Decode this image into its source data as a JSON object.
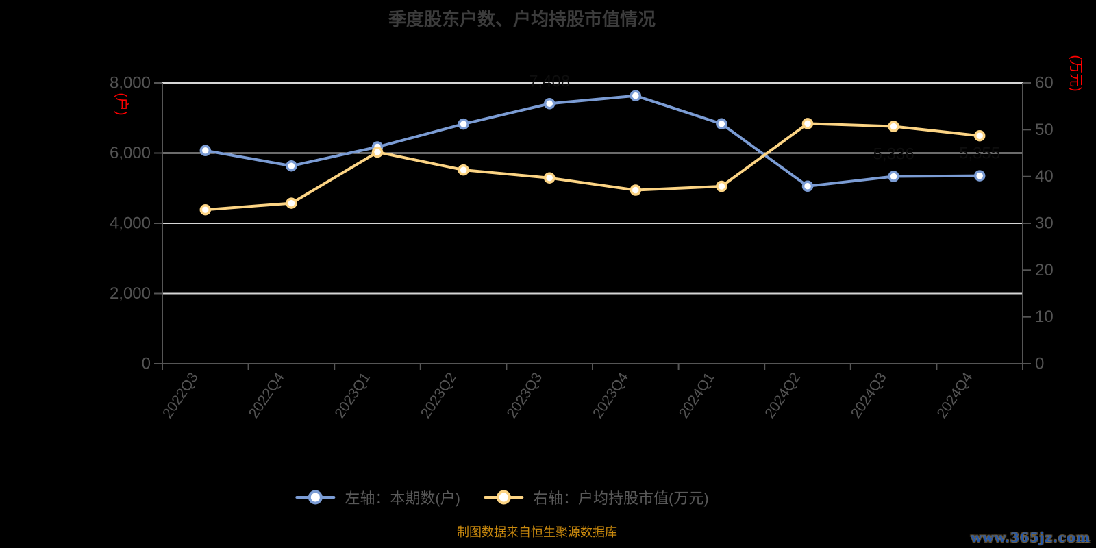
{
  "title": "季度股东户数、户均持股市值情况",
  "chart_data": {
    "type": "line",
    "categories": [
      "2022Q3",
      "2022Q4",
      "2023Q1",
      "2023Q2",
      "2023Q3",
      "2023Q4",
      "2024Q1",
      "2024Q2",
      "2024Q3",
      "2024Q4"
    ],
    "series": [
      {
        "name": "左轴：本期数(户)",
        "axis": "left",
        "color": "#7b9cd4",
        "marker_fill": "#ffffff",
        "values": [
          6073,
          5635,
          6176,
          6828,
          7408,
          7636,
          6834,
          5057,
          5336,
          5355
        ]
      },
      {
        "name": "右轴：户均持股市值(万元)",
        "axis": "right",
        "color": "#fcd484",
        "marker_fill": "#ffffff",
        "values": [
          32.9,
          34.3,
          45.2,
          41.4,
          39.7,
          37.1,
          37.9,
          51.3,
          50.7,
          48.7
        ]
      }
    ],
    "left_axis": {
      "unit_label": "(户)",
      "min": 0,
      "max": 8000,
      "step": 2000,
      "tick_labels": [
        "0",
        "2,000",
        "4,000",
        "6,000",
        "8,000"
      ]
    },
    "right_axis": {
      "unit_label": "(万元)",
      "min": 0,
      "max": 60,
      "step": 10,
      "tick_labels": [
        "0",
        "10",
        "20",
        "30",
        "40",
        "50",
        "60"
      ]
    },
    "grid": true,
    "legend_position": "bottom",
    "hidden_point_labels": [
      {
        "series": 0,
        "index": 4,
        "text": "7,408"
      },
      {
        "series": 0,
        "index": 8,
        "text": "5,336"
      },
      {
        "series": 0,
        "index": 9,
        "text": "5,355"
      }
    ]
  },
  "legend": {
    "items": [
      {
        "label": "左轴：本期数(户)",
        "color": "#7b9cd4"
      },
      {
        "label": "右轴：户均持股市值(万元)",
        "color": "#fcd484"
      }
    ]
  },
  "footer": {
    "source_note": "制图数据来自恒生聚源数据库",
    "watermark": "www.365jz.com"
  },
  "colors": {
    "background": "#000000",
    "title": "#3c3c3c",
    "axis_text": "#545454",
    "grid_line": "#d6d6d6",
    "axis_line": "#555555",
    "unit_label": "#ff0000",
    "hidden_label": "#0e0e0e",
    "footer_text": "#c9890e",
    "watermark": "#2557a8"
  }
}
